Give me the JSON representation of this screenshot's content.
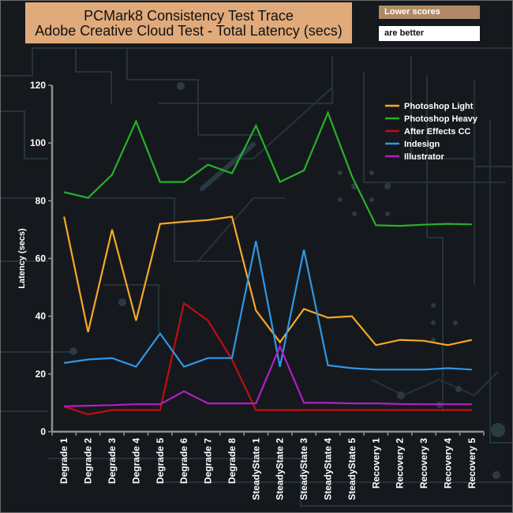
{
  "title_line1": "PCMark8 Consistency Test Trace",
  "title_line2": "Adobe Creative Cloud Test -  Total Latency (secs)",
  "note_line1": "Lower scores",
  "note_line2": "are better",
  "chart_data": {
    "type": "line",
    "title": "PCMark8 Consistency Test Trace / Adobe Creative Cloud Test -  Total Latency (secs)",
    "xlabel": "",
    "ylabel": "Latency (secs)",
    "ylim": [
      0,
      120
    ],
    "yticks": [
      0,
      20,
      40,
      60,
      80,
      100,
      120
    ],
    "grid": false,
    "legend_position": "top-right",
    "categories": [
      "Degrade 1",
      "Degrade 2",
      "Degrade 3",
      "Degrade 4",
      "Degrade 5",
      "Degrade 6",
      "Degrade 7",
      "Degrade 8",
      "SteadyState 1",
      "SteadyState 2",
      "SteadyState 3",
      "SteadyState 4",
      "SteadyState 5",
      "Recovery 1",
      "Recovery 2",
      "Recovery 3",
      "Recovery 4",
      "Recovery 5"
    ],
    "series": [
      {
        "name": "Photoshop Light",
        "color": "#f5a82a",
        "values": [
          74.5,
          34.5,
          70,
          38.5,
          72,
          72.7,
          73.3,
          74.5,
          42,
          31,
          42.5,
          39.5,
          40,
          30,
          31.8,
          31.5,
          30,
          31.8
        ]
      },
      {
        "name": " Photoshop Heavy",
        "color": "#27b12a",
        "values": [
          83,
          81,
          89,
          107.5,
          86.5,
          86.5,
          92.5,
          89.5,
          106,
          86.5,
          90.5,
          110.5,
          88.5,
          71.5,
          71.3,
          71.7,
          72,
          71.8
        ]
      },
      {
        "name": "After Effects CC",
        "color": "#c00e10",
        "values": [
          8.7,
          6,
          7.5,
          7.5,
          7.5,
          44.5,
          38.5,
          25,
          7.5,
          7.5,
          7.5,
          7.5,
          7.5,
          7.5,
          7.5,
          7.5,
          7.5,
          7.5
        ]
      },
      {
        "name": "Indesign",
        "color": "#2f97e5",
        "values": [
          23.8,
          25,
          25.5,
          22.5,
          34,
          22.5,
          25.5,
          25.5,
          66,
          22.5,
          63,
          23,
          22,
          21.5,
          21.5,
          21.5,
          22,
          21.5
        ]
      },
      {
        "name": "Illustrator",
        "color": "#b31ec7",
        "values": [
          8.8,
          9,
          9.2,
          9.5,
          9.5,
          14,
          9.8,
          9.8,
          9.8,
          29.5,
          10,
          10,
          9.8,
          9.8,
          9.6,
          9.5,
          9.5,
          9.5
        ]
      }
    ]
  }
}
